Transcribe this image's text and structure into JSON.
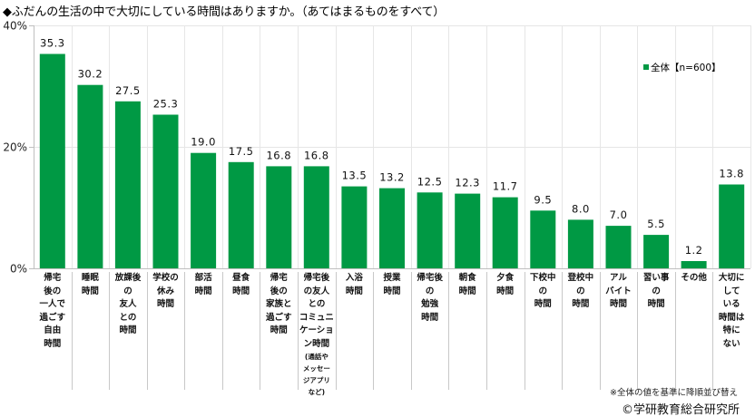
{
  "title": "◆ふだんの生活の中で大切にしている時間はありますか。（あてはまるものをすべて）",
  "note": "※全体の値を基準に降順並び替え",
  "credit": "©学研教育総合研究所",
  "colors": {
    "bar": "#009944",
    "grid": "#e6e6e6",
    "axis": "#bfbfbf"
  },
  "chart_data": {
    "type": "bar",
    "title": "◆ふだんの生活の中で大切にしている時間はありますか。（あてはまるものをすべて）",
    "xlabel": "",
    "ylabel": "",
    "ylim": [
      0,
      40
    ],
    "yticks": [
      0,
      20,
      40
    ],
    "ytick_labels": [
      "0%",
      "20%",
      "40%"
    ],
    "grid": true,
    "legend": {
      "position": "top-right",
      "entries": [
        "全体【n=600】"
      ]
    },
    "categories": [
      [
        "帰宅",
        "後の",
        "一人で",
        "過ごす",
        "自由",
        "時間"
      ],
      [
        "睡眠",
        "時間"
      ],
      [
        "放課後",
        "の",
        "友人",
        "との",
        "時間"
      ],
      [
        "学校の",
        "休み",
        "時間"
      ],
      [
        "部活",
        "時間"
      ],
      [
        "昼食",
        "時間"
      ],
      [
        "帰宅",
        "後の",
        "家族と",
        "過ごす",
        "時間"
      ],
      [
        "帰宅後",
        "の友人",
        "との",
        "コミュニ",
        "ケーショ",
        "ン時間",
        "(通話や|sub",
        "メッセー|sub",
        "ジアプリ|sub",
        "など)|sub"
      ],
      [
        "入浴",
        "時間"
      ],
      [
        "授業",
        "時間"
      ],
      [
        "帰宅後",
        "の",
        "勉強",
        "時間"
      ],
      [
        "朝食",
        "時間"
      ],
      [
        "夕食",
        "時間"
      ],
      [
        "下校中",
        "の",
        "時間"
      ],
      [
        "登校中",
        "の",
        "時間"
      ],
      [
        "アル",
        "バイト",
        "時間"
      ],
      [
        "習い事",
        "の",
        "時間"
      ],
      [
        "その他"
      ],
      [
        "大切に",
        "して",
        "いる",
        "時間は",
        "特に",
        "ない"
      ]
    ],
    "series": [
      {
        "name": "全体【n=600】",
        "values": [
          35.3,
          30.2,
          27.5,
          25.3,
          19.0,
          17.5,
          16.8,
          16.8,
          13.5,
          13.2,
          12.5,
          12.3,
          11.7,
          9.5,
          8.0,
          7.0,
          5.5,
          1.2,
          13.8
        ],
        "labels": [
          "35.3",
          "30.2",
          "27.5",
          "25.3",
          "19.0",
          "17.5",
          "16.8",
          "16.8",
          "13.5",
          "13.2",
          "12.5",
          "12.3",
          "11.7",
          "9.5",
          "8.0",
          "7.0",
          "5.5",
          "1.2",
          "13.8"
        ]
      }
    ]
  }
}
